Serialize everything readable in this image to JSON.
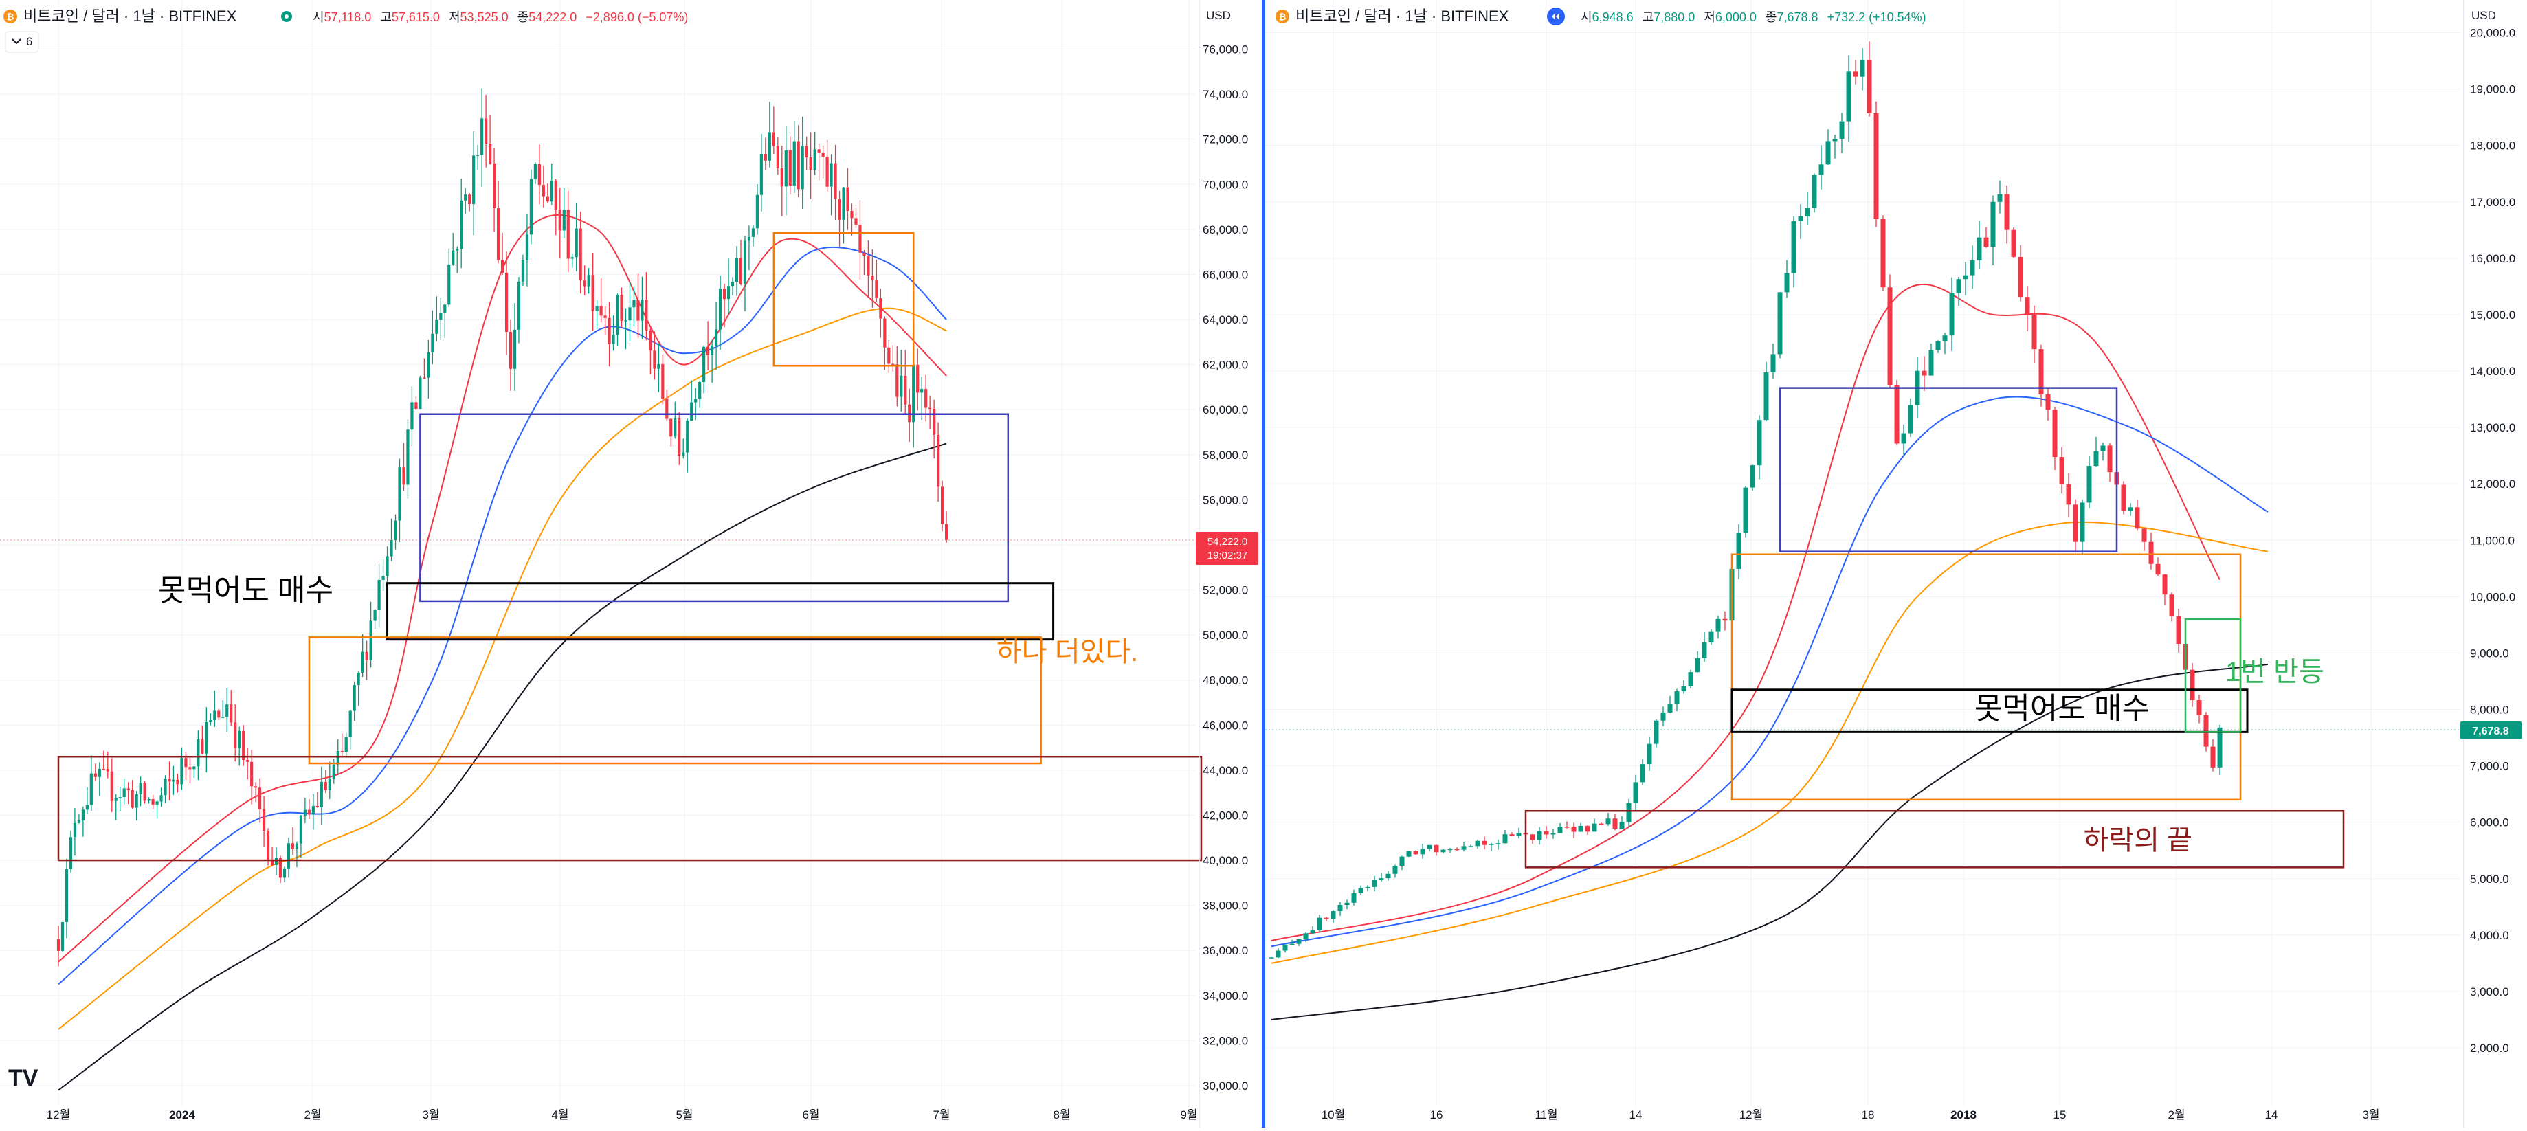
{
  "left": {
    "symbol": "비트코인 / 달러 · 1날 · BITFINEX",
    "ohlc": [
      {
        "k": "시",
        "v": "57,118.0"
      },
      {
        "k": "고",
        "v": "57,615.0"
      },
      {
        "k": "저",
        "v": "53,525.0"
      },
      {
        "k": "종",
        "v": "54,222.0"
      },
      {
        "k": "",
        "v": "−2,896.0 (−5.07%)"
      }
    ],
    "collapse_count": "6",
    "currency": "USD",
    "last_price": "54,222.0",
    "countdown": "19:02:37"
  },
  "right": {
    "symbol": "비트코인 / 달러 · 1날 · BITFINEX",
    "ohlc": [
      {
        "k": "시",
        "v": "6,948.6"
      },
      {
        "k": "고",
        "v": "7,880.0"
      },
      {
        "k": "저",
        "v": "6,000.0"
      },
      {
        "k": "종",
        "v": "7,678.8"
      },
      {
        "k": "",
        "v": "+732.2 (+10.54%)"
      }
    ],
    "currency": "USD",
    "last_price": "7,678.8"
  },
  "colors": {
    "up": "#089981",
    "down": "#f23645",
    "ma_red": "#f23645",
    "ma_blue": "#2962ff",
    "ma_orange": "#ff9800",
    "ma_black": "#131722",
    "box_black": "#000000",
    "box_blue": "#3f3fc0",
    "box_orange": "#f57c00",
    "box_darkred": "#8b1a1a",
    "box_green": "#31b75a"
  },
  "chart_data": [
    {
      "type": "candlestick",
      "currency": "USD",
      "ylim": [
        29500,
        77000
      ],
      "y_ticks": [
        30000,
        32000,
        34000,
        36000,
        38000,
        40000,
        42000,
        44000,
        46000,
        48000,
        50000,
        52000,
        54000,
        56000,
        58000,
        60000,
        62000,
        64000,
        66000,
        68000,
        70000,
        72000,
        74000,
        76000
      ],
      "x_ticks": [
        "12월",
        "2024",
        "2월",
        "3월",
        "4월",
        "5월",
        "6월",
        "7월",
        "8월",
        "9월"
      ],
      "ohlc_path": [
        [
          "2023-12-01",
          36500
        ],
        [
          "2023-12-05",
          42000
        ],
        [
          "2023-12-10",
          43500
        ],
        [
          "2023-12-25",
          42500
        ],
        [
          "2024-01-11",
          47000
        ],
        [
          "2024-01-23",
          39500
        ],
        [
          "2024-02-08",
          44500
        ],
        [
          "2024-02-28",
          62000
        ],
        [
          "2024-03-14",
          73000
        ],
        [
          "2024-03-20",
          62000
        ],
        [
          "2024-03-26",
          70500
        ],
        [
          "2024-04-13",
          64000
        ],
        [
          "2024-04-20",
          64500
        ],
        [
          "2024-04-30",
          58000
        ],
        [
          "2024-05-06",
          63000
        ],
        [
          "2024-05-15",
          66000
        ],
        [
          "2024-05-21",
          71500
        ],
        [
          "2024-06-07",
          70000
        ],
        [
          "2024-06-24",
          60000
        ],
        [
          "2024-06-28",
          62000
        ],
        [
          "2024-07-04",
          54222
        ]
      ],
      "moving_averages": [
        {
          "color": "red",
          "points": [
            [
              "2023-12-01",
              35500
            ],
            [
              "2024-01-15",
              42500
            ],
            [
              "2024-02-15",
              45000
            ],
            [
              "2024-03-01",
              55000
            ],
            [
              "2024-03-20",
              67000
            ],
            [
              "2024-04-10",
              68000
            ],
            [
              "2024-05-01",
              62000
            ],
            [
              "2024-05-25",
              67500
            ],
            [
              "2024-06-15",
              65000
            ],
            [
              "2024-07-04",
              61500
            ]
          ]
        },
        {
          "color": "blue",
          "points": [
            [
              "2023-12-01",
              34500
            ],
            [
              "2024-01-15",
              41500
            ],
            [
              "2024-02-10",
              42500
            ],
            [
              "2024-03-01",
              48000
            ],
            [
              "2024-03-20",
              58000
            ],
            [
              "2024-04-10",
              63500
            ],
            [
              "2024-05-01",
              62500
            ],
            [
              "2024-05-15",
              63500
            ],
            [
              "2024-06-01",
              67000
            ],
            [
              "2024-06-20",
              66500
            ],
            [
              "2024-07-04",
              64000
            ]
          ]
        },
        {
          "color": "orange",
          "points": [
            [
              "2023-12-01",
              32500
            ],
            [
              "2024-01-15",
              39000
            ],
            [
              "2024-02-01",
              40500
            ],
            [
              "2024-03-01",
              44000
            ],
            [
              "2024-04-01",
              56000
            ],
            [
              "2024-05-01",
              61000
            ],
            [
              "2024-06-01",
              63500
            ],
            [
              "2024-06-20",
              64500
            ],
            [
              "2024-07-04",
              63500
            ]
          ]
        },
        {
          "color": "black",
          "points": [
            [
              "2023-12-01",
              29800
            ],
            [
              "2024-01-01",
              34000
            ],
            [
              "2024-02-01",
              37500
            ],
            [
              "2024-03-01",
              42000
            ],
            [
              "2024-04-01",
              49500
            ],
            [
              "2024-05-01",
              53500
            ],
            [
              "2024-06-01",
              56500
            ],
            [
              "2024-07-04",
              58500
            ]
          ]
        }
      ],
      "zones": [
        {
          "label": "",
          "color": "blue",
          "x": [
            "2024-02-27",
            "2024-07-19"
          ],
          "y": [
            51500,
            59800
          ]
        },
        {
          "label": "못먹어도 매수",
          "color": "black",
          "x": [
            "2024-02-19",
            "2024-07-30"
          ],
          "y": [
            49800,
            52300
          ]
        },
        {
          "label": "하나 더있다.",
          "color": "orange",
          "x": [
            "2024-01-31",
            "2024-07-27"
          ],
          "y": [
            44300,
            49900
          ]
        },
        {
          "label": "",
          "color": "darkred",
          "x": [
            "2023-12-01",
            "2024-09-04"
          ],
          "y": [
            40000,
            44600
          ]
        },
        {
          "label": "",
          "color": "orange",
          "x": [
            "2024-05-23",
            "2024-06-26"
          ],
          "y": [
            61950,
            67850
          ]
        }
      ]
    },
    {
      "type": "candlestick",
      "currency": "USD",
      "ylim": [
        1700,
        20500
      ],
      "y_ticks": [
        2000,
        3000,
        4000,
        5000,
        6000,
        7000,
        8000,
        9000,
        10000,
        11000,
        12000,
        13000,
        14000,
        15000,
        16000,
        17000,
        18000,
        19000,
        20000
      ],
      "x_ticks": [
        "10월",
        "16",
        "11월",
        "14",
        "12월",
        "18",
        "2018",
        "15",
        "2월",
        "14",
        "3월"
      ],
      "ohlc_path": [
        [
          "2017-09-22",
          3600
        ],
        [
          "2017-10-13",
          5500
        ],
        [
          "2017-11-12",
          6000
        ],
        [
          "2017-11-17",
          7700
        ],
        [
          "2017-11-27",
          9700
        ],
        [
          "2017-12-07",
          16500
        ],
        [
          "2017-12-17",
          19700
        ],
        [
          "2017-12-22",
          12500
        ],
        [
          "2017-12-25",
          13800
        ],
        [
          "2018-01-06",
          17000
        ],
        [
          "2018-01-17",
          11000
        ],
        [
          "2018-01-20",
          12800
        ],
        [
          "2018-01-30",
          10100
        ],
        [
          "2018-02-06",
          6900
        ],
        [
          "2018-02-07",
          7679
        ]
      ],
      "moving_averages": [
        {
          "color": "red",
          "points": [
            [
              "2017-09-22",
              3900
            ],
            [
              "2017-10-30",
              5000
            ],
            [
              "2017-11-30",
              8000
            ],
            [
              "2017-12-20",
              15000
            ],
            [
              "2018-01-05",
              15000
            ],
            [
              "2018-01-20",
              14500
            ],
            [
              "2018-02-07",
              10300
            ]
          ]
        },
        {
          "color": "blue",
          "points": [
            [
              "2017-09-22",
              3800
            ],
            [
              "2017-10-30",
              4800
            ],
            [
              "2017-11-30",
              7000
            ],
            [
              "2017-12-20",
              12000
            ],
            [
              "2018-01-05",
              13500
            ],
            [
              "2018-01-25",
              13000
            ],
            [
              "2018-02-14",
              11500
            ]
          ]
        },
        {
          "color": "orange",
          "points": [
            [
              "2017-09-22",
              3500
            ],
            [
              "2017-10-30",
              4500
            ],
            [
              "2017-12-05",
              6200
            ],
            [
              "2017-12-25",
              10000
            ],
            [
              "2018-01-15",
              11300
            ],
            [
              "2018-02-14",
              10800
            ]
          ]
        },
        {
          "color": "black",
          "points": [
            [
              "2017-09-22",
              2500
            ],
            [
              "2017-10-30",
              3100
            ],
            [
              "2017-12-05",
              4300
            ],
            [
              "2017-12-25",
              6500
            ],
            [
              "2018-01-20",
              8300
            ],
            [
              "2018-02-14",
              8800
            ]
          ]
        }
      ],
      "zones": [
        {
          "label": "",
          "color": "blue",
          "x": [
            "2017-12-05",
            "2018-01-23"
          ],
          "y": [
            10800,
            13700
          ]
        },
        {
          "label": "",
          "color": "orange",
          "x": [
            "2017-11-28",
            "2018-02-10"
          ],
          "y": [
            6400,
            10750
          ]
        },
        {
          "label": "못먹어도 매수",
          "color": "black",
          "x": [
            "2017-11-28",
            "2018-02-11"
          ],
          "y": [
            7600,
            8350
          ]
        },
        {
          "label": "1번 반등",
          "color": "green",
          "x": [
            "2018-02-02",
            "2018-02-10"
          ],
          "y": [
            7600,
            9600
          ]
        },
        {
          "label": "하락의 끝",
          "color": "darkred",
          "x": [
            "2017-10-29",
            "2018-02-25"
          ],
          "y": [
            5200,
            6200
          ]
        }
      ]
    }
  ]
}
